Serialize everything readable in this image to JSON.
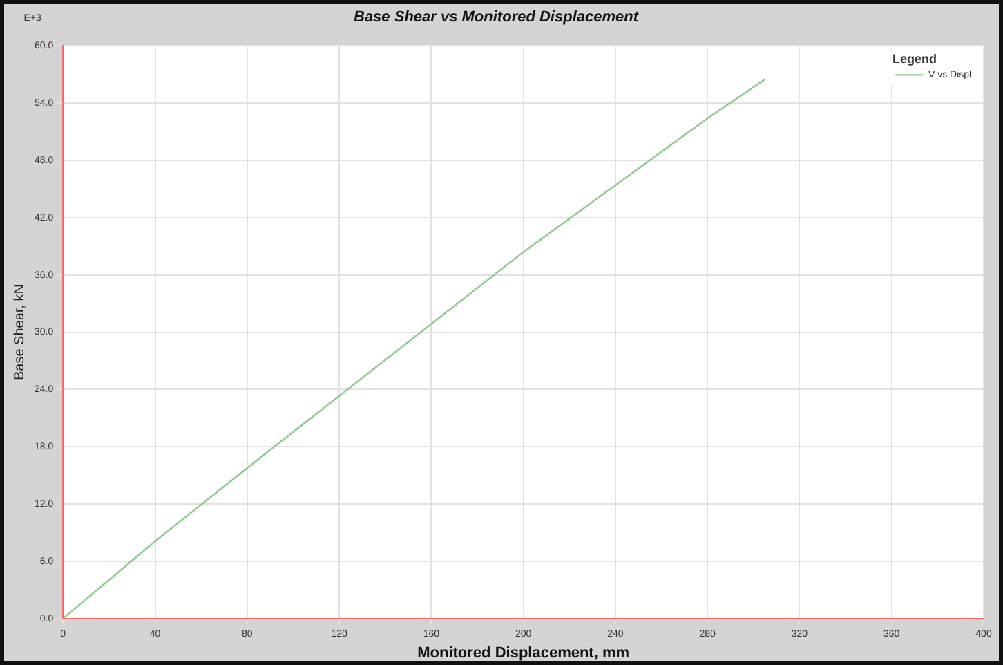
{
  "chart_data": {
    "type": "line",
    "title": "Base Shear vs Monitored Displacement",
    "xlabel": "Monitored Displacement, mm",
    "ylabel": "Base Shear, kN",
    "legend_title": "Legend",
    "annotations": [
      "E+3"
    ],
    "series": [
      {
        "name": "V vs Displ",
        "color": "#88cc88",
        "x": [
          0,
          40,
          88,
          200,
          280,
          305
        ],
        "values": [
          0,
          8.1,
          17.3,
          38.4,
          52.4,
          56.5
        ]
      }
    ],
    "xlim": [
      0,
      400
    ],
    "xticks": [
      0,
      40,
      80,
      120,
      160,
      200,
      240,
      280,
      320,
      360,
      400
    ],
    "ylim": [
      0,
      60
    ],
    "yticks": [
      {
        "value": 0,
        "label": "0.0"
      },
      {
        "value": 6,
        "label": "6.0"
      },
      {
        "value": 12,
        "label": "12.0"
      },
      {
        "value": 18,
        "label": "18.0"
      },
      {
        "value": 24,
        "label": "24.0"
      },
      {
        "value": 30,
        "label": "30.0"
      },
      {
        "value": 36,
        "label": "36.0"
      },
      {
        "value": 42,
        "label": "42.0"
      },
      {
        "value": 48,
        "label": "48.0"
      },
      {
        "value": 54,
        "label": "54.0"
      },
      {
        "value": 60,
        "label": "60.0"
      }
    ],
    "grid": true,
    "legend": "top right",
    "marker": "none",
    "line_style": "solid"
  }
}
